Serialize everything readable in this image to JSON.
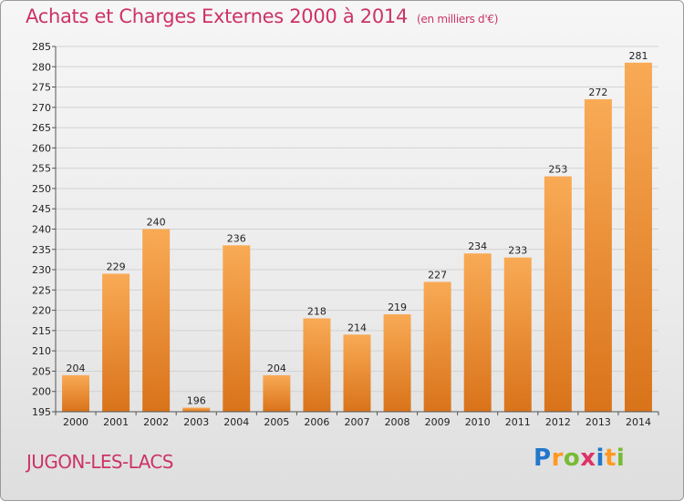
{
  "title": "Achats et Charges Externes 2000 à 2014",
  "subtitle": "(en milliers d'€)",
  "place": "JUGON-LES-LACS",
  "logo": {
    "letters": [
      "P",
      "r",
      "o",
      "x",
      "i",
      "t",
      "i"
    ],
    "colors": [
      "#2277cc",
      "#ff9922",
      "#77bb33",
      "#dd3366",
      "#2277cc",
      "#ff9922",
      "#77bb33"
    ]
  },
  "colors": {
    "title": "#cc3366",
    "bar_light": "#f9aa55",
    "bar_dark": "#d9731a"
  },
  "chart_data": {
    "type": "bar",
    "categories": [
      "2000",
      "2001",
      "2002",
      "2003",
      "2004",
      "2005",
      "2006",
      "2007",
      "2008",
      "2009",
      "2010",
      "2011",
      "2012",
      "2013",
      "2014"
    ],
    "values": [
      204,
      229,
      240,
      196,
      236,
      204,
      218,
      214,
      219,
      227,
      234,
      233,
      253,
      272,
      281
    ],
    "ylim": [
      195,
      285
    ],
    "yticks": [
      195,
      200,
      205,
      210,
      215,
      220,
      225,
      230,
      235,
      240,
      245,
      250,
      255,
      260,
      265,
      270,
      275,
      280,
      285
    ],
    "grid": true
  }
}
